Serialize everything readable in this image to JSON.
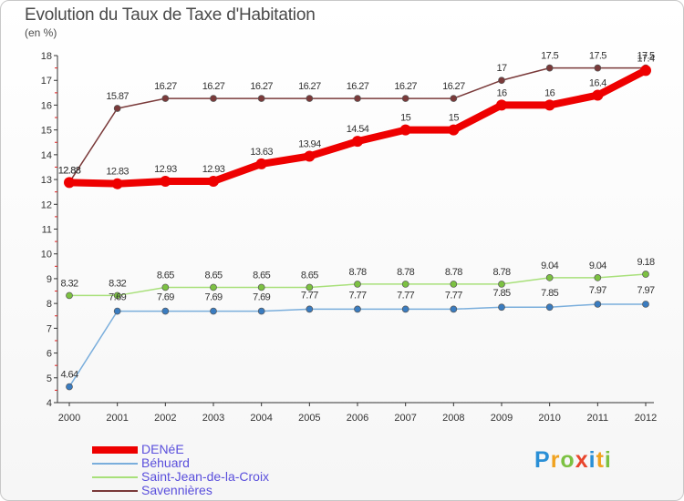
{
  "title": "Evolution du Taux de Taxe d'Habitation",
  "subtitle": "(en %)",
  "logo": {
    "letters": [
      "P",
      "r",
      "o",
      "x",
      "i",
      "t",
      "i"
    ],
    "colors": [
      "#2a8fd6",
      "#f0a21f",
      "#7cc142",
      "#e8452c",
      "#2a8fd6",
      "#f0a21f",
      "#7cc142"
    ]
  },
  "colors": {
    "accent": "#ee0000",
    "legend_text": "#5a4fdc",
    "axis": "#333333",
    "grid_mark": "#e02020"
  },
  "chart_data": {
    "type": "line",
    "title": "Evolution du Taux de Taxe d'Habitation",
    "subtitle": "(en %)",
    "xlabel": "",
    "ylabel": "",
    "categories": [
      "2000",
      "2001",
      "2002",
      "2003",
      "2004",
      "2005",
      "2006",
      "2007",
      "2008",
      "2009",
      "2010",
      "2011",
      "2012"
    ],
    "ylim": [
      4,
      18
    ],
    "yticks": [
      "4",
      "5",
      "6",
      "7",
      "8",
      "9",
      "10",
      "11",
      "12",
      "13",
      "14",
      "15",
      "16",
      "17",
      "18"
    ],
    "grid": false,
    "legend_position": "bottom-left",
    "series": [
      {
        "name": "DENéE",
        "color": "#ee0000",
        "marker": "#ee0000",
        "values": [
          12.88,
          12.83,
          12.93,
          12.93,
          13.63,
          13.94,
          14.54,
          15,
          15,
          16,
          16,
          16.4,
          17.4
        ],
        "labels": [
          "12.88",
          "12.83",
          "12.93",
          "12.93",
          "13.63",
          "13.94",
          "14.54",
          "15",
          "15",
          "16",
          "16",
          "16.4",
          "17.4"
        ]
      },
      {
        "name": "Béhuard",
        "color": "#7aaedc",
        "marker": "#3a7cc0",
        "values": [
          4.64,
          7.69,
          7.69,
          7.69,
          7.69,
          7.77,
          7.77,
          7.77,
          7.77,
          7.85,
          7.85,
          7.97,
          7.97
        ],
        "labels": [
          "4.64",
          "7.69",
          "7.69",
          "7.69",
          "7.69",
          "7.77",
          "7.77",
          "7.77",
          "7.77",
          "7.85",
          "7.85",
          "7.97",
          "7.97"
        ]
      },
      {
        "name": "Saint-Jean-de-la-Croix",
        "color": "#a8e07a",
        "marker": "#7cc142",
        "values": [
          8.32,
          8.32,
          8.65,
          8.65,
          8.65,
          8.65,
          8.78,
          8.78,
          8.78,
          8.78,
          9.04,
          9.04,
          9.18
        ],
        "labels": [
          "8.32",
          "8.32",
          "8.65",
          "8.65",
          "8.65",
          "8.65",
          "8.78",
          "8.78",
          "8.78",
          "8.78",
          "9.04",
          "9.04",
          "9.18"
        ]
      },
      {
        "name": "Savennières",
        "color": "#7a3a3a",
        "marker": "#7a3a3a",
        "values": [
          12.88,
          15.87,
          16.27,
          16.27,
          16.27,
          16.27,
          16.27,
          16.27,
          16.27,
          17,
          17.5,
          17.5,
          17.5
        ],
        "labels": [
          "12.88",
          "15.87",
          "16.27",
          "16.27",
          "16.27",
          "16.27",
          "16.27",
          "16.27",
          "16.27",
          "17",
          "17.5",
          "17.5",
          "17.5"
        ]
      }
    ]
  }
}
